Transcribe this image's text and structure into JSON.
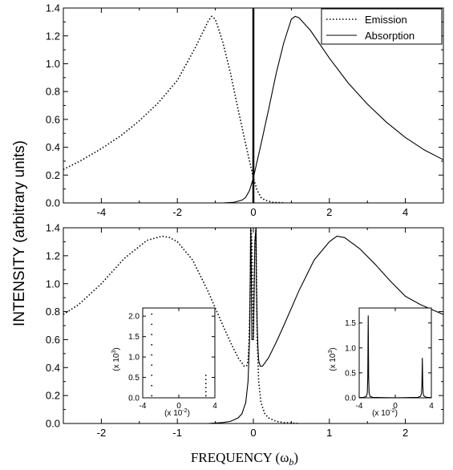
{
  "chart_data": [
    {
      "type": "line",
      "panel": "top",
      "xlim": [
        -5,
        5
      ],
      "ylim": [
        0,
        1.4
      ],
      "xticks": [
        "-4",
        "-2",
        "0",
        "2",
        "4"
      ],
      "yticks": [
        "0.0",
        "0.2",
        "0.4",
        "0.6",
        "0.8",
        "1.0",
        "1.2",
        "1.4"
      ],
      "legend_position": "top-right",
      "vertical_line_at_x": 0,
      "series": [
        {
          "name": "Emission",
          "style": "dotted",
          "x": [
            -5,
            -4.5,
            -4,
            -3.5,
            -3,
            -2.5,
            -2,
            -1.5,
            -1.2,
            -1.1,
            -1.0,
            -0.8,
            -0.6,
            -0.4,
            -0.2,
            -0.1,
            0,
            0.1,
            0.2,
            0.3,
            0.5,
            0.8
          ],
          "y": [
            0.24,
            0.31,
            0.39,
            0.48,
            0.59,
            0.72,
            0.88,
            1.13,
            1.3,
            1.34,
            1.32,
            1.15,
            0.93,
            0.67,
            0.42,
            0.3,
            0.18,
            0.09,
            0.04,
            0.02,
            0.005,
            0
          ]
        },
        {
          "name": "Absorption",
          "style": "solid",
          "x": [
            -0.8,
            -0.5,
            -0.3,
            -0.2,
            -0.1,
            0,
            0.1,
            0.2,
            0.4,
            0.6,
            0.8,
            1.0,
            1.1,
            1.2,
            1.5,
            2,
            2.5,
            3,
            3.5,
            4,
            4.5,
            5
          ],
          "y": [
            0,
            0.005,
            0.02,
            0.04,
            0.09,
            0.18,
            0.3,
            0.42,
            0.67,
            0.93,
            1.15,
            1.32,
            1.34,
            1.33,
            1.24,
            1.04,
            0.86,
            0.71,
            0.58,
            0.47,
            0.38,
            0.31
          ]
        }
      ]
    },
    {
      "type": "line",
      "panel": "bottom",
      "xlim": [
        -2.5,
        2.5
      ],
      "ylim": [
        0,
        1.4
      ],
      "xticks": [
        "-2",
        "-1",
        "0",
        "1",
        "2"
      ],
      "yticks": [
        "0.0",
        "0.2",
        "0.4",
        "0.6",
        "0.8",
        "1.0",
        "1.2",
        "1.4"
      ],
      "series": [
        {
          "name": "Emission",
          "style": "dotted",
          "x": [
            -2.5,
            -2.3,
            -2.0,
            -1.7,
            -1.4,
            -1.2,
            -1.1,
            -1.0,
            -0.8,
            -0.6,
            -0.4,
            -0.3,
            -0.2,
            -0.12,
            -0.09,
            -0.07,
            -0.06,
            -0.05,
            -0.04,
            -0.035,
            -0.03,
            -0.02,
            0,
            0.02,
            0.035,
            0.04,
            0.05,
            0.07,
            0.1,
            0.15,
            0.2,
            0.3,
            0.4,
            0.5,
            0.6
          ],
          "y": [
            0.78,
            0.85,
            1.0,
            1.18,
            1.31,
            1.34,
            1.33,
            1.3,
            1.17,
            0.95,
            0.7,
            0.58,
            0.47,
            0.41,
            0.41,
            0.45,
            0.55,
            0.72,
            1.0,
            1.4,
            1.4,
            1.3,
            0.6,
            1.3,
            1.4,
            1.1,
            0.6,
            0.3,
            0.15,
            0.07,
            0.04,
            0.015,
            0.007,
            0.003,
            0
          ]
        },
        {
          "name": "Absorption",
          "style": "solid",
          "x": [
            -0.6,
            -0.5,
            -0.4,
            -0.3,
            -0.2,
            -0.15,
            -0.1,
            -0.07,
            -0.05,
            -0.04,
            -0.035,
            -0.03,
            -0.02,
            0,
            0.02,
            0.035,
            0.04,
            0.05,
            0.06,
            0.07,
            0.09,
            0.12,
            0.2,
            0.3,
            0.4,
            0.6,
            0.8,
            1.0,
            1.1,
            1.2,
            1.4,
            1.6,
            1.8,
            2.0,
            2.2,
            2.5
          ],
          "y": [
            0,
            0.003,
            0.007,
            0.015,
            0.04,
            0.07,
            0.15,
            0.3,
            0.6,
            1.1,
            1.4,
            1.3,
            0.6,
            0.6,
            1.3,
            1.4,
            1.0,
            0.72,
            0.55,
            0.45,
            0.41,
            0.41,
            0.47,
            0.58,
            0.7,
            0.95,
            1.17,
            1.3,
            1.34,
            1.33,
            1.25,
            1.14,
            1.02,
            0.91,
            0.85,
            0.78
          ]
        }
      ]
    },
    {
      "type": "scatter",
      "panel": "inset-left",
      "xlim": [
        -4,
        4
      ],
      "ylim": [
        0,
        2.2
      ],
      "xticks": [
        "-4",
        "0",
        "4"
      ],
      "yticks": [
        "0.0",
        "0.5",
        "1.0",
        "1.5",
        "2.0"
      ],
      "series": [
        {
          "name": "Emission",
          "style": "dotted",
          "x": [
            -3,
            -3,
            -3,
            -3,
            -3,
            -3,
            -3,
            -3,
            -3,
            3,
            3,
            3,
            3,
            3,
            3
          ],
          "y": [
            0.05,
            0.3,
            0.55,
            0.8,
            1.05,
            1.3,
            1.55,
            1.8,
            2.05,
            0.05,
            0.15,
            0.25,
            0.35,
            0.45,
            0.55
          ]
        }
      ]
    },
    {
      "type": "line",
      "panel": "inset-right",
      "xlim": [
        -4,
        4
      ],
      "ylim": [
        0,
        1.8
      ],
      "xticks": [
        "-4",
        "0",
        "4"
      ],
      "yticks": [
        "0.0",
        "0.5",
        "1.0",
        "1.5"
      ],
      "series": [
        {
          "name": "Absorption",
          "style": "solid",
          "x": [
            -4,
            -3.5,
            -3.2,
            -3.1,
            -3.05,
            -3.0,
            -2.95,
            -2.9,
            -2.8,
            -2.5,
            -1,
            0,
            1,
            2.5,
            2.8,
            2.9,
            2.95,
            3.0,
            3.05,
            3.1,
            3.2,
            3.5,
            4
          ],
          "y": [
            0.005,
            0.01,
            0.03,
            0.1,
            0.4,
            1.65,
            0.4,
            0.1,
            0.03,
            0.01,
            0.003,
            0.002,
            0.003,
            0.01,
            0.03,
            0.08,
            0.25,
            0.8,
            0.25,
            0.08,
            0.03,
            0.01,
            0.005
          ]
        }
      ]
    }
  ],
  "labels": {
    "ylabel": "INTENSITY (arbitrary units)",
    "xlabel": "FREQUENCY (ω",
    "xlabel_sub": "b",
    "xlabel_close": ")",
    "inset_ylabel_pre": "(x 10",
    "inset_ylabel_exp": "3",
    "inset_ylabel_post": ")",
    "inset_xlabel_pre": "(x 10",
    "inset_xlabel_exp": "-2",
    "inset_xlabel_post": ")"
  }
}
